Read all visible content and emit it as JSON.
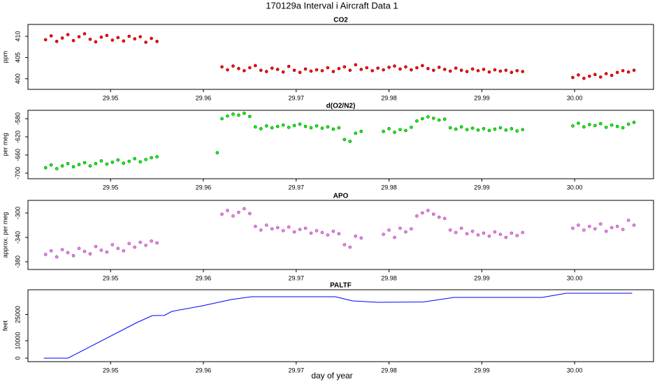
{
  "title": "170129a   Interval i Aircraft Data 1",
  "xlabel": "day of year",
  "chart_data": [
    {
      "type": "scatter",
      "title": "CO2",
      "ylabel": "ppm",
      "color": "#ff0000",
      "xlim": [
        29.9411,
        30.0085
      ],
      "ylim": [
        397.5,
        412.8
      ],
      "xticks": [
        29.95,
        29.96,
        29.97,
        29.98,
        29.99,
        {
          "value": 30,
          "label": "30.00"
        }
      ],
      "yticks": [
        400,
        405,
        410
      ],
      "x": [
        29.943,
        29.9436,
        29.9442,
        29.9448,
        29.9454,
        29.946,
        29.9466,
        29.9472,
        29.9478,
        29.9484,
        29.949,
        29.9496,
        29.9502,
        29.9508,
        29.9514,
        29.952,
        29.9526,
        29.9532,
        29.9538,
        29.9544,
        29.955,
        29.962,
        29.9626,
        29.9632,
        29.9638,
        29.9644,
        29.965,
        29.9656,
        29.9662,
        29.9668,
        29.9674,
        29.968,
        29.9686,
        29.9692,
        29.9698,
        29.9704,
        29.971,
        29.9716,
        29.9722,
        29.9728,
        29.9734,
        29.974,
        29.9746,
        29.9752,
        29.9758,
        29.9764,
        29.977,
        29.9776,
        29.9782,
        29.9788,
        29.9794,
        29.98,
        29.9806,
        29.9812,
        29.9818,
        29.9824,
        29.983,
        29.9836,
        29.9842,
        29.9848,
        29.9854,
        29.986,
        29.9866,
        29.9872,
        29.9878,
        29.9884,
        29.989,
        29.9896,
        29.9902,
        29.9908,
        29.9914,
        29.992,
        29.9926,
        29.9932,
        29.9938,
        29.9944,
        29.9998,
        30.0004,
        30.001,
        30.0016,
        30.0022,
        30.0028,
        30.0034,
        30.004,
        30.0046,
        30.0052,
        30.0058,
        30.0064
      ],
      "values": [
        409.2,
        410.1,
        408.8,
        409.6,
        410.4,
        409.0,
        409.9,
        410.6,
        409.3,
        408.7,
        409.8,
        410.2,
        409.1,
        409.7,
        408.9,
        410.0,
        409.4,
        409.9,
        408.6,
        409.5,
        408.8,
        402.8,
        402.1,
        403.0,
        402.4,
        401.9,
        402.6,
        403.1,
        402.0,
        401.7,
        402.5,
        402.2,
        401.6,
        402.9,
        402.0,
        401.5,
        402.3,
        401.8,
        402.1,
        401.9,
        402.6,
        401.7,
        402.4,
        402.8,
        402.0,
        403.3,
        402.2,
        402.6,
        401.9,
        402.5,
        402.1,
        402.7,
        403.0,
        402.3,
        402.8,
        402.1,
        402.6,
        403.1,
        402.4,
        402.0,
        402.7,
        402.2,
        401.8,
        402.5,
        402.0,
        401.7,
        402.3,
        401.9,
        402.2,
        401.6,
        402.1,
        401.8,
        402.0,
        401.5,
        401.9,
        401.7,
        400.3,
        400.9,
        400.1,
        400.6,
        401.0,
        400.4,
        401.2,
        400.8,
        401.5,
        401.9,
        401.6,
        402.0
      ]
    },
    {
      "type": "scatter",
      "title": "d(O2/N2)",
      "ylabel": "per meg",
      "color": "#00ff00",
      "xlim": [
        29.9411,
        30.0085
      ],
      "ylim": [
        -712.3,
        -561.5
      ],
      "xticks": [
        29.95,
        29.96,
        29.97,
        29.98,
        29.99,
        {
          "value": 30,
          "label": "30.00"
        }
      ],
      "yticks": [
        -700,
        -660,
        -620,
        -580
      ],
      "x": [
        29.943,
        29.9436,
        29.9442,
        29.9448,
        29.9454,
        29.946,
        29.9466,
        29.9472,
        29.9478,
        29.9484,
        29.949,
        29.9496,
        29.9502,
        29.9508,
        29.9514,
        29.952,
        29.9526,
        29.9532,
        29.9538,
        29.9544,
        29.955,
        29.9615,
        29.962,
        29.9626,
        29.9632,
        29.9638,
        29.9644,
        29.965,
        29.9656,
        29.9662,
        29.9668,
        29.9674,
        29.968,
        29.9686,
        29.9692,
        29.9698,
        29.9704,
        29.971,
        29.9716,
        29.9722,
        29.9728,
        29.9734,
        29.974,
        29.9746,
        29.9752,
        29.9758,
        29.9764,
        29.977,
        29.9794,
        29.98,
        29.9806,
        29.9812,
        29.9818,
        29.9824,
        29.983,
        29.9836,
        29.9842,
        29.9848,
        29.9854,
        29.986,
        29.9866,
        29.9872,
        29.9878,
        29.9884,
        29.989,
        29.9896,
        29.9902,
        29.9908,
        29.9914,
        29.992,
        29.9926,
        29.9932,
        29.9938,
        29.9944,
        29.9998,
        30.0004,
        30.001,
        30.0016,
        30.0022,
        30.0028,
        30.0034,
        30.004,
        30.0046,
        30.0052,
        30.0058,
        30.0064
      ],
      "values": [
        -688,
        -682,
        -690,
        -684,
        -679,
        -686,
        -681,
        -677,
        -684,
        -679,
        -673,
        -680,
        -676,
        -671,
        -678,
        -674,
        -668,
        -675,
        -670,
        -666,
        -664,
        -655,
        -580,
        -574,
        -570,
        -572,
        -568,
        -575,
        -598,
        -602,
        -596,
        -600,
        -597,
        -594,
        -599,
        -595,
        -592,
        -597,
        -600,
        -596,
        -601,
        -598,
        -603,
        -600,
        -626,
        -630,
        -612,
        -608,
        -608,
        -602,
        -610,
        -604,
        -606,
        -599,
        -585,
        -580,
        -576,
        -579,
        -583,
        -581,
        -600,
        -603,
        -598,
        -604,
        -601,
        -605,
        -602,
        -606,
        -603,
        -600,
        -605,
        -602,
        -607,
        -604,
        -596,
        -590,
        -598,
        -593,
        -595,
        -591,
        -599,
        -594,
        -597,
        -600,
        -592,
        -588
      ]
    },
    {
      "type": "scatter",
      "title": "APO",
      "ylabel": "approx. per meg",
      "color": "#ee82ee",
      "xlim": [
        29.9411,
        30.0085
      ],
      "ylim": [
        -392.6,
        -279.4
      ],
      "xticks": [
        29.95,
        29.96,
        29.97,
        29.98,
        29.99,
        {
          "value": 30,
          "label": "30.00"
        }
      ],
      "yticks": [
        -380,
        -340,
        -300
      ],
      "x": [
        29.943,
        29.9436,
        29.9442,
        29.9448,
        29.9454,
        29.946,
        29.9466,
        29.9472,
        29.9478,
        29.9484,
        29.949,
        29.9496,
        29.9502,
        29.9508,
        29.9514,
        29.952,
        29.9526,
        29.9532,
        29.9538,
        29.9544,
        29.955,
        29.962,
        29.9626,
        29.9632,
        29.9638,
        29.9644,
        29.965,
        29.9656,
        29.9662,
        29.9668,
        29.9674,
        29.968,
        29.9686,
        29.9692,
        29.9698,
        29.9704,
        29.971,
        29.9716,
        29.9722,
        29.9728,
        29.9734,
        29.974,
        29.9746,
        29.9752,
        29.9758,
        29.9764,
        29.977,
        29.9794,
        29.98,
        29.9806,
        29.9812,
        29.9818,
        29.9824,
        29.983,
        29.9836,
        29.9842,
        29.9848,
        29.9854,
        29.986,
        29.9866,
        29.9872,
        29.9878,
        29.9884,
        29.989,
        29.9896,
        29.9902,
        29.9908,
        29.9914,
        29.992,
        29.9926,
        29.9932,
        29.9938,
        29.9944,
        29.9998,
        30.0004,
        30.001,
        30.0016,
        30.0022,
        30.0028,
        30.0034,
        30.004,
        30.0046,
        30.0052,
        30.0058,
        30.0064
      ],
      "values": [
        -368,
        -362,
        -372,
        -360,
        -365,
        -370,
        -358,
        -363,
        -367,
        -355,
        -361,
        -364,
        -352,
        -358,
        -362,
        -350,
        -356,
        -348,
        -353,
        -346,
        -349,
        -302,
        -296,
        -305,
        -299,
        -293,
        -301,
        -322,
        -328,
        -320,
        -326,
        -324,
        -329,
        -323,
        -331,
        -327,
        -325,
        -333,
        -329,
        -332,
        -336,
        -330,
        -334,
        -352,
        -356,
        -338,
        -341,
        -335,
        -328,
        -340,
        -325,
        -331,
        -326,
        -305,
        -300,
        -296,
        -302,
        -307,
        -309,
        -328,
        -332,
        -325,
        -334,
        -330,
        -336,
        -333,
        -338,
        -331,
        -335,
        -340,
        -333,
        -337,
        -332,
        -325,
        -320,
        -328,
        -322,
        -326,
        -318,
        -330,
        -324,
        -322,
        -327,
        -312,
        -320
      ]
    },
    {
      "type": "line",
      "title": "PALTF",
      "ylabel": "feet",
      "color": "#0000ff",
      "xlim": [
        29.9411,
        30.0085
      ],
      "ylim": [
        -2000,
        39200
      ],
      "xticks": [
        29.95,
        29.96,
        29.97,
        29.98,
        29.99,
        {
          "value": 30,
          "label": "30.00"
        }
      ],
      "yticks": [
        0,
        10000,
        25000
      ],
      "x": [
        29.9428,
        29.9454,
        29.9528,
        29.9545,
        29.9558,
        29.9566,
        29.9599,
        29.963,
        29.9652,
        29.9742,
        29.9761,
        29.9788,
        29.9837,
        29.987,
        29.9965,
        29.9991,
        30.0062
      ],
      "values": [
        0,
        0,
        20300,
        24400,
        24500,
        26800,
        30000,
        33600,
        35200,
        35200,
        32800,
        32000,
        32200,
        34800,
        34800,
        37200,
        37200
      ]
    }
  ]
}
